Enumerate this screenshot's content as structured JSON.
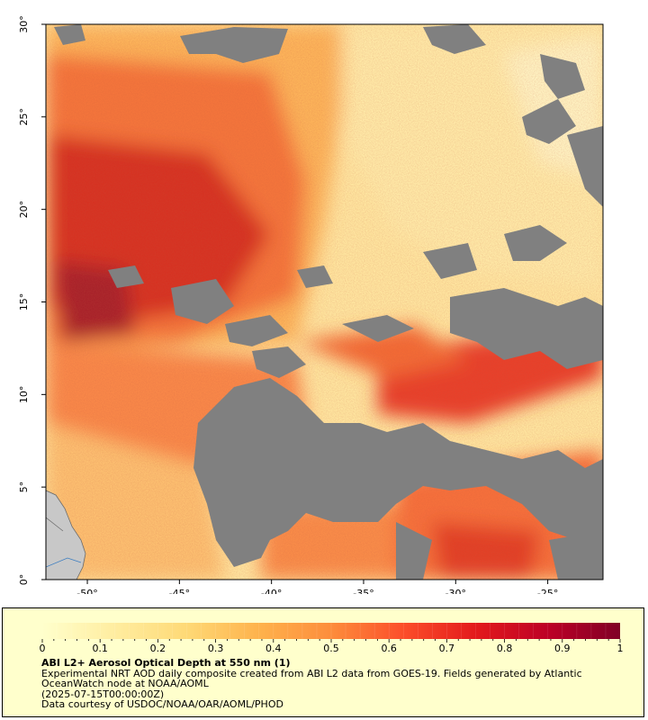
{
  "map": {
    "x_ticks": [
      "-50°",
      "-45°",
      "-40°",
      "-35°",
      "-30°",
      "-25°"
    ],
    "y_ticks": [
      "30°",
      "25°",
      "20°",
      "15°",
      "10°",
      "5°",
      "0°"
    ],
    "colors": {
      "no_data": "#808080",
      "land": "#c8c8c8",
      "low": "#ffeeb0",
      "mid": "#fd8d3c",
      "high": "#bd0026"
    }
  },
  "colorbar": {
    "labels": [
      "0",
      "0.1",
      "0.2",
      "0.3",
      "0.4",
      "0.5",
      "0.6",
      "0.7",
      "0.8",
      "0.9",
      "1"
    ],
    "stops": [
      "#ffffcc",
      "#ffeda0",
      "#fed976",
      "#feb24c",
      "#fd8d3c",
      "#fc4e2a",
      "#e31a1c",
      "#bd0026",
      "#800026"
    ]
  },
  "info": {
    "title": "ABI L2+ Aerosol Optical Depth at 550 nm (1)",
    "desc_line1": "Experimental NRT AOD daily composite created from ABI L2 data from GOES-19. Fields generated by Atlantic",
    "desc_line2": "OceanWatch node at NOAA/AOML",
    "timestamp": "(2025-07-15T00:00:00Z)",
    "credit": "Data courtesy of USDOC/NOAA/OAR/AOML/PHOD"
  }
}
